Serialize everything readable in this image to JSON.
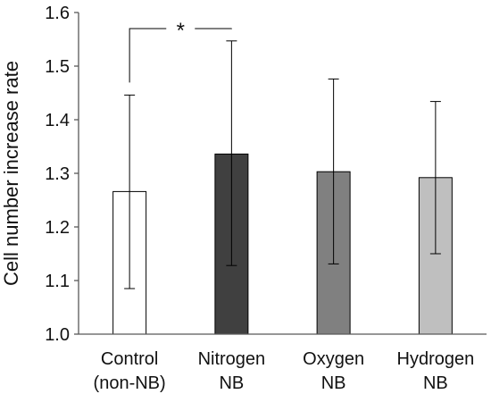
{
  "chart_data": {
    "type": "bar",
    "title": "",
    "xlabel": "",
    "ylabel": "Cell number increase rate",
    "ylim": [
      1.0,
      1.6
    ],
    "yticks": [
      "1.0",
      "1.1",
      "1.2",
      "1.3",
      "1.4",
      "1.5",
      "1.6"
    ],
    "grid": false,
    "legend": "none",
    "categories": [
      [
        "Control",
        "(non-NB)"
      ],
      [
        "Nitrogen",
        "NB"
      ],
      [
        "Oxygen",
        "NB"
      ],
      [
        "Hydrogen",
        "NB"
      ]
    ],
    "values": [
      1.266,
      1.336,
      1.303,
      1.292
    ],
    "error_upper": [
      1.446,
      1.547,
      1.476,
      1.434
    ],
    "error_lower": [
      1.085,
      1.128,
      1.131,
      1.15
    ],
    "bar_colors": [
      "#ffffff",
      "#404040",
      "#808080",
      "#bfbfbf"
    ],
    "significance": {
      "label": "*",
      "from_category": 0,
      "to_category": 1
    }
  }
}
